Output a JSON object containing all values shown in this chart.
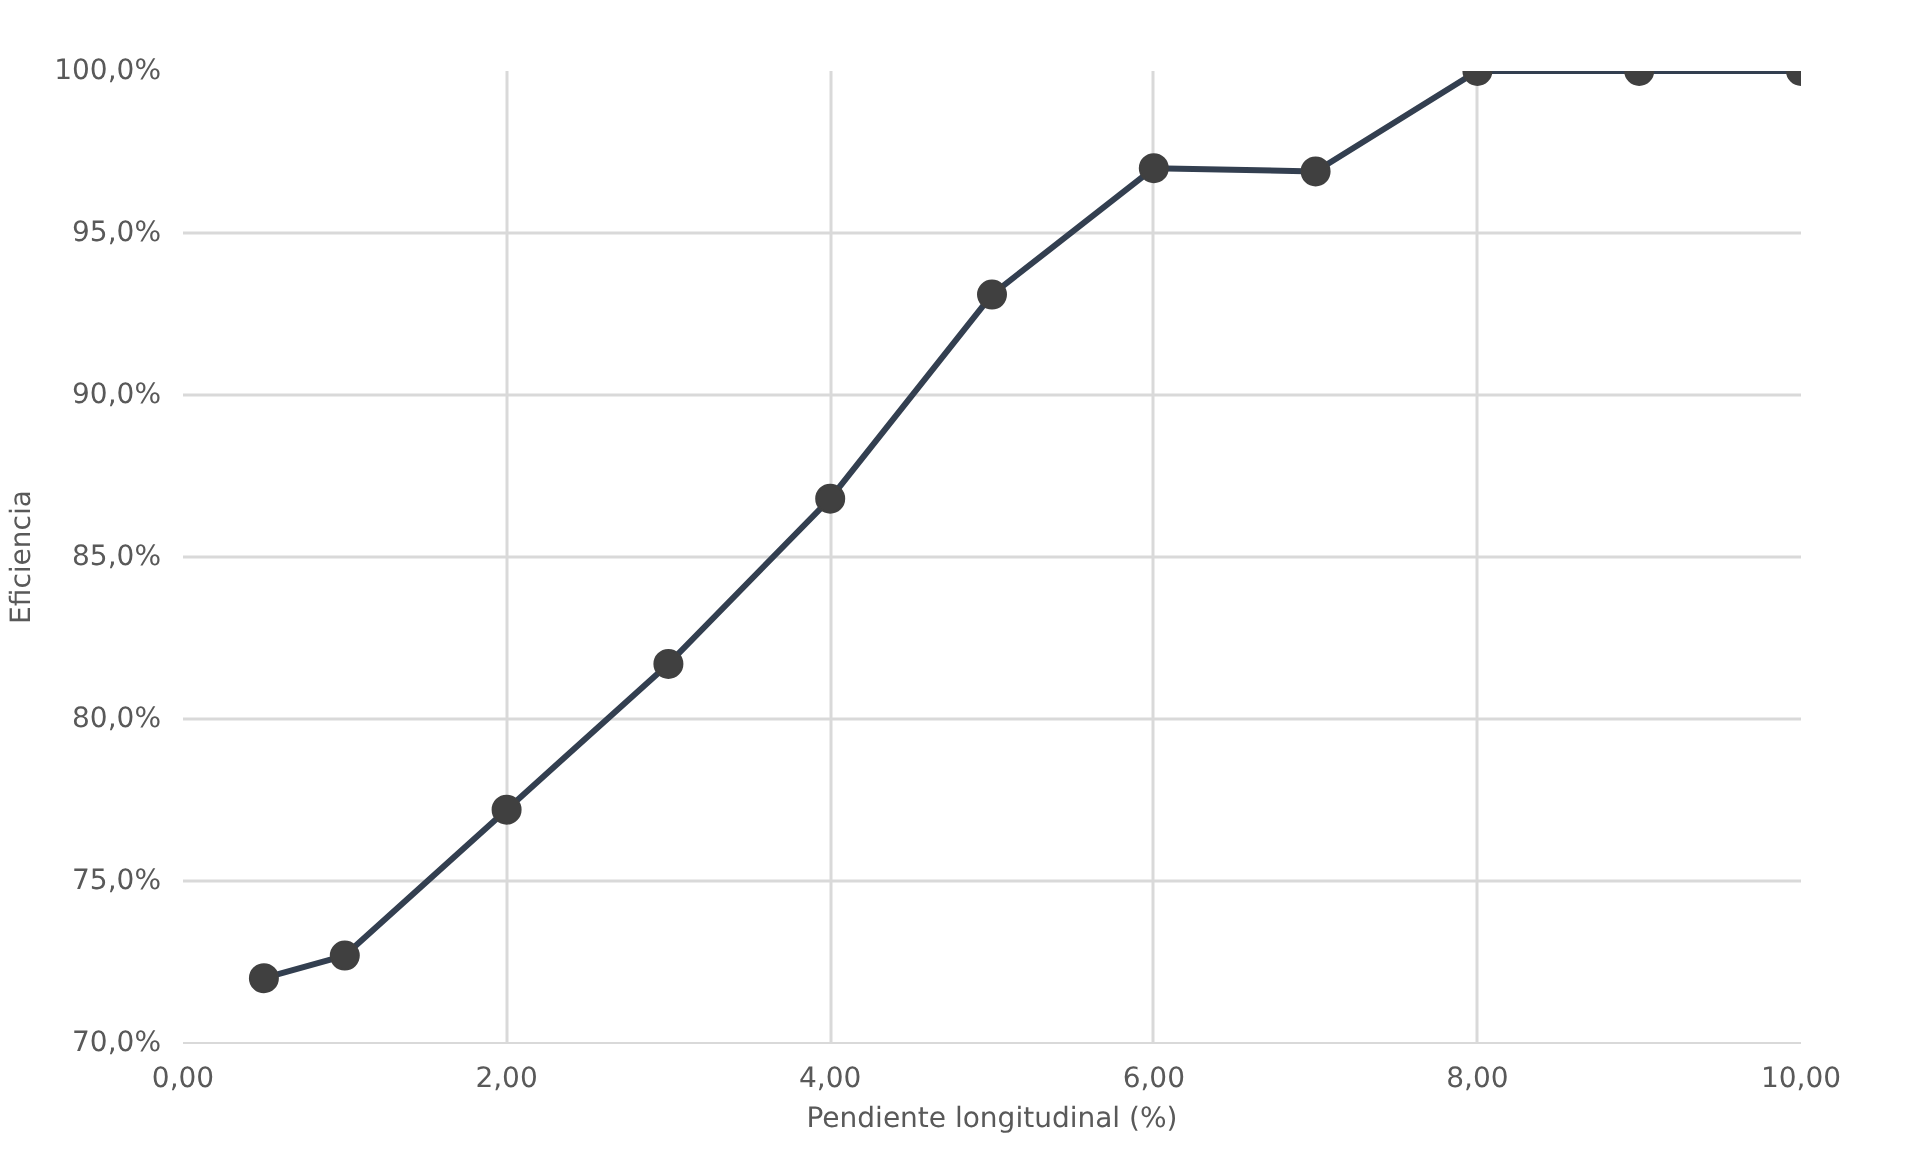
{
  "chart_data": {
    "type": "line",
    "xlabel": "Pendiente longitudinal (%)",
    "ylabel": "Eficiencia",
    "x": [
      0.5,
      1,
      2,
      3,
      4,
      5,
      6,
      7,
      8,
      9,
      10
    ],
    "series": [
      {
        "color": "#333f50",
        "values": [
          72.0,
          72.7,
          77.2,
          81.7,
          86.8,
          93.1,
          97.0,
          96.9,
          100,
          100,
          100
        ]
      }
    ],
    "xlim": [
      0,
      10
    ],
    "ylim": [
      70,
      100
    ],
    "xticks": [
      {
        "value": 0,
        "label": "0,00"
      },
      {
        "value": 2,
        "label": "2,00"
      },
      {
        "value": 4,
        "label": "4,00"
      },
      {
        "value": 6,
        "label": "6,00"
      },
      {
        "value": 8,
        "label": "8,00"
      },
      {
        "value": 10,
        "label": "10,00"
      }
    ],
    "yticks": [
      {
        "value": 70,
        "label": "70,0%"
      },
      {
        "value": 75,
        "label": "75,0%"
      },
      {
        "value": 80,
        "label": "80,0%"
      },
      {
        "value": 85,
        "label": "85,0%"
      },
      {
        "value": 90,
        "label": "90,0%"
      },
      {
        "value": 95,
        "label": "95,0%"
      },
      {
        "value": 100,
        "label": "100,0%"
      }
    ],
    "grid": true,
    "marker": "circle",
    "line_style": "solid"
  }
}
